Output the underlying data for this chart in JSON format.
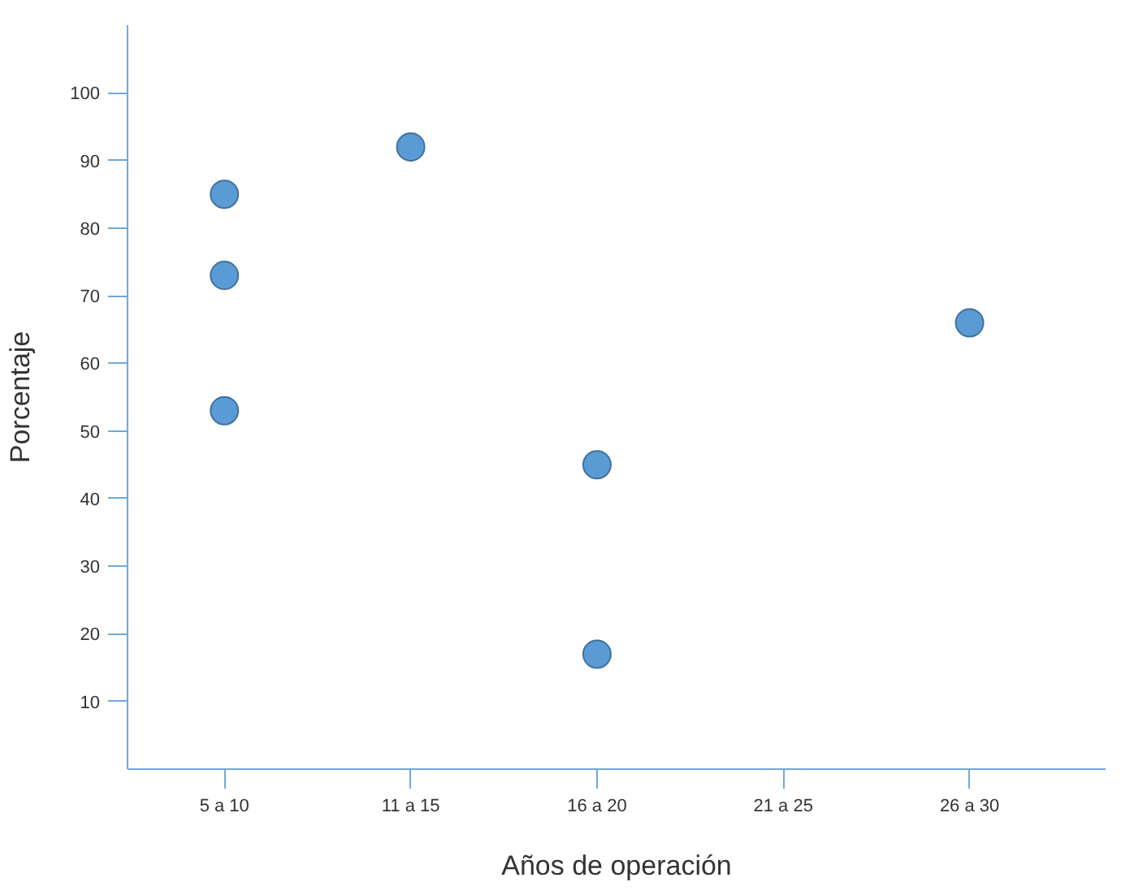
{
  "chart_data": {
    "type": "scatter",
    "xlabel": "Años de operación",
    "ylabel": "Porcentaje",
    "categories": [
      "5 a 10",
      "11 a 15",
      "16 a 20",
      "21 a 25",
      "26 a 30"
    ],
    "series": [
      {
        "color": "#5b9bd5",
        "x": [
          "5 a 10",
          "5 a 10",
          "5 a 10",
          "11 a 15",
          "16 a 20",
          "16 a 20",
          "26 a 30"
        ],
        "values": [
          53,
          73,
          85,
          92,
          17,
          45,
          66
        ]
      }
    ],
    "marker": "circle",
    "grid": false,
    "ylim": [
      0,
      110
    ],
    "yticks": [
      10,
      20,
      30,
      40,
      50,
      60,
      70,
      80,
      90,
      100
    ]
  }
}
